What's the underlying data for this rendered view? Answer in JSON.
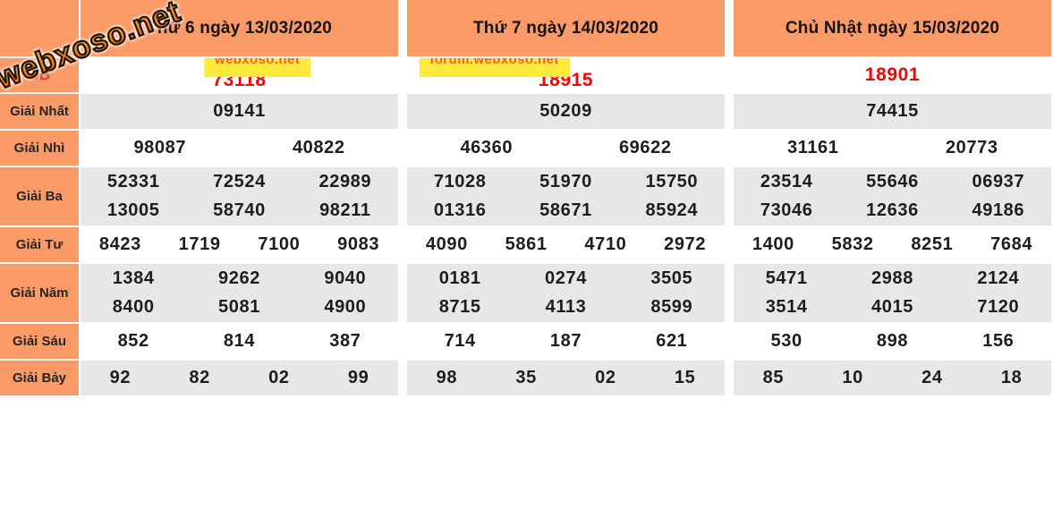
{
  "logo": {
    "text": "webxoso.net"
  },
  "labels": {
    "db": "ĐB",
    "nhat": "Giải Nhất",
    "nhi": "Giải Nhì",
    "ba": "Giải Ba",
    "tu": "Giải Tư",
    "nam": "Giải Năm",
    "sau": "Giải Sáu",
    "bay": "Giải Bảy"
  },
  "days": [
    {
      "header": "Thứ 6 ngày 13/03/2020",
      "watermark": "webxoso.net",
      "db": "73118",
      "nhat": "09141",
      "nhi": [
        "98087",
        "40822"
      ],
      "ba": [
        [
          "52331",
          "72524",
          "22989"
        ],
        [
          "13005",
          "58740",
          "98211"
        ]
      ],
      "tu": [
        "8423",
        "1719",
        "7100",
        "9083"
      ],
      "nam": [
        [
          "1384",
          "9262",
          "9040"
        ],
        [
          "8400",
          "5081",
          "4900"
        ]
      ],
      "sau": [
        "852",
        "814",
        "387"
      ],
      "bay": [
        "92",
        "82",
        "02",
        "99"
      ]
    },
    {
      "header": "Thứ 7 ngày 14/03/2020",
      "watermark": "forum.webxoso.net",
      "db": "18915",
      "nhat": "50209",
      "nhi": [
        "46360",
        "69622"
      ],
      "ba": [
        [
          "71028",
          "51970",
          "15750"
        ],
        [
          "01316",
          "58671",
          "85924"
        ]
      ],
      "tu": [
        "4090",
        "5861",
        "4710",
        "2972"
      ],
      "nam": [
        [
          "0181",
          "0274",
          "3505"
        ],
        [
          "8715",
          "4113",
          "8599"
        ]
      ],
      "sau": [
        "714",
        "187",
        "621"
      ],
      "bay": [
        "98",
        "35",
        "02",
        "15"
      ]
    },
    {
      "header": "Chủ Nhật ngày 15/03/2020",
      "db": "18901",
      "nhat": "74415",
      "nhi": [
        "31161",
        "20773"
      ],
      "ba": [
        [
          "23514",
          "55646",
          "06937"
        ],
        [
          "73046",
          "12636",
          "49186"
        ]
      ],
      "tu": [
        "1400",
        "5832",
        "8251",
        "7684"
      ],
      "nam": [
        [
          "5471",
          "2988",
          "2124"
        ],
        [
          "3514",
          "4015",
          "7120"
        ]
      ],
      "sau": [
        "530",
        "898",
        "156"
      ],
      "bay": [
        "85",
        "10",
        "24",
        "18"
      ]
    }
  ],
  "colors": {
    "header_orange": "#fa9a67",
    "row_gray": "#e7e7e7",
    "special_red": "#ff0000",
    "db_label_red": "#e53935",
    "watermark_yellow": "#ffe93b",
    "watermark_text": "#ff5a2e",
    "number_text": "#1d1d1d"
  }
}
